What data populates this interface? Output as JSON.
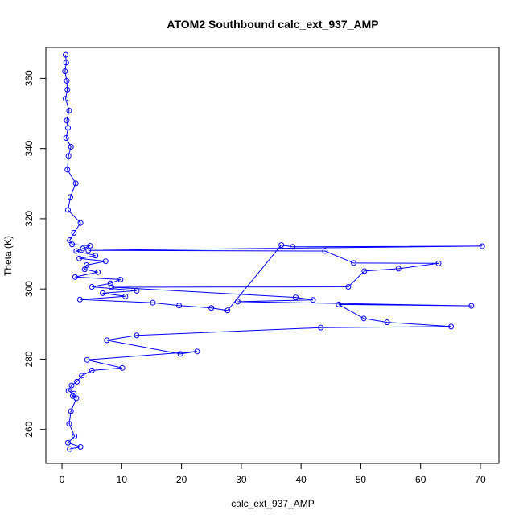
{
  "chart_data": {
    "type": "scatter",
    "title": "ATOM2 Southbound calc_ext_937_AMP",
    "xlabel": "calc_ext_937_AMP",
    "ylabel": "Theta (K)",
    "xlim": [
      -2.7,
      73.1
    ],
    "ylim": [
      250.3,
      368.8
    ],
    "xticks": [
      0,
      10,
      20,
      30,
      40,
      50,
      60,
      70
    ],
    "yticks": [
      260,
      280,
      300,
      320,
      340,
      360
    ],
    "point_style": "open-circle-connected",
    "grid": false,
    "legend": "none",
    "color": "#0000ff",
    "series": [
      {
        "x": [
          0.6,
          0.7,
          0.5,
          0.8,
          0.9,
          0.6,
          1.2,
          0.8,
          1.0,
          0.7,
          1.5,
          1.1,
          0.9,
          2.3,
          1.4,
          1.0,
          3.1,
          2.0,
          1.3,
          1.7,
          4.7,
          3.5,
          2.4,
          5.6,
          2.9,
          7.3,
          4.1,
          3.8,
          6.0,
          2.2,
          9.8,
          8.1,
          5.0,
          12.5,
          6.8,
          10.6,
          3.0,
          15.2,
          19.6,
          25.0,
          27.7,
          36.7,
          38.6,
          70.3,
          4.4,
          44.0,
          48.8,
          63.0,
          56.3,
          50.6,
          47.9,
          8.3,
          39.1,
          42.0,
          29.4,
          68.5,
          46.3,
          50.5,
          54.4,
          65.1,
          43.3,
          12.5,
          7.5,
          19.8,
          22.6,
          4.2,
          10.1,
          5.0,
          3.3,
          2.5,
          1.6,
          1.1,
          2.0,
          1.8,
          2.4,
          1.5,
          1.2,
          2.1,
          1.0,
          3.1,
          1.3
        ],
        "y": [
          366.7,
          364.5,
          362.0,
          359.3,
          356.8,
          354.2,
          350.8,
          348.0,
          345.9,
          343.0,
          340.5,
          337.9,
          334.0,
          330.1,
          326.2,
          322.5,
          318.8,
          316.0,
          313.9,
          312.7,
          312.3,
          311.5,
          310.8,
          309.5,
          308.7,
          307.9,
          306.8,
          305.6,
          304.8,
          303.4,
          302.7,
          301.6,
          300.6,
          299.5,
          298.8,
          297.9,
          297.0,
          296.1,
          295.3,
          294.6,
          293.9,
          312.5,
          312.0,
          312.2,
          311.0,
          310.8,
          307.4,
          307.3,
          305.8,
          305.1,
          300.6,
          300.5,
          297.6,
          296.9,
          296.4,
          295.2,
          295.6,
          291.6,
          290.5,
          289.3,
          289.0,
          286.8,
          285.4,
          281.5,
          282.2,
          279.8,
          277.5,
          276.8,
          275.3,
          273.6,
          272.5,
          271.0,
          270.2,
          269.5,
          268.9,
          265.2,
          261.6,
          258.0,
          256.2,
          255.0,
          254.4
        ]
      }
    ]
  }
}
